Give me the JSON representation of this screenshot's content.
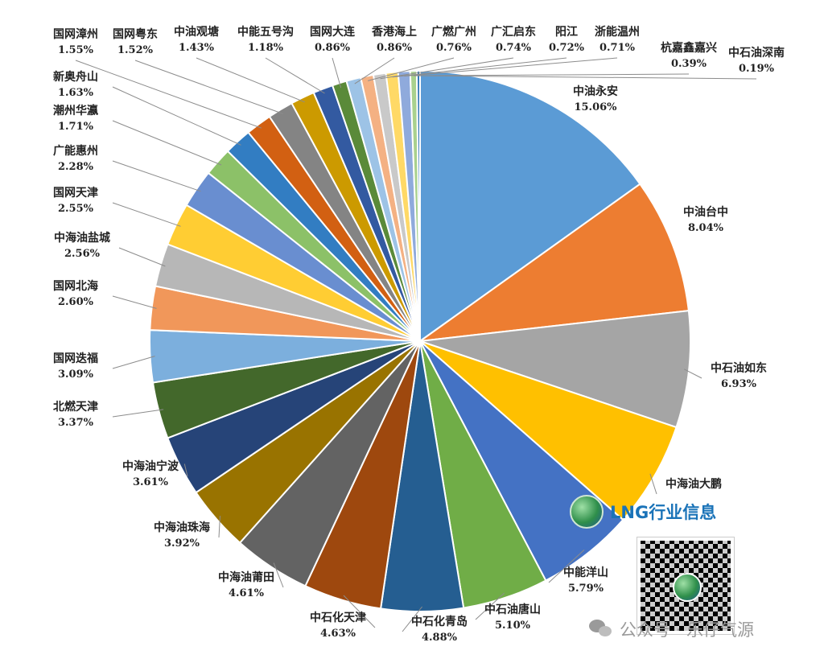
{
  "chart_data": {
    "type": "pie",
    "title": "",
    "slices": [
      {
        "label": "中油永安",
        "value": 15.06,
        "display": "15.06%",
        "color": "#5b9bd5"
      },
      {
        "label": "中油台中",
        "value": 8.04,
        "display": "8.04%",
        "color": "#ed7d31"
      },
      {
        "label": "中石油如东",
        "value": 6.93,
        "display": "6.93%",
        "color": "#a5a5a5"
      },
      {
        "label": "中海油大鹏",
        "value": 6.3,
        "display": "",
        "color": "#ffc000"
      },
      {
        "label": "中能洋山",
        "value": 5.79,
        "display": "5.79%",
        "color": "#4472c4"
      },
      {
        "label": "中石油唐山",
        "value": 5.1,
        "display": "5.10%",
        "color": "#70ad47"
      },
      {
        "label": "中石化青岛",
        "value": 4.88,
        "display": "4.88%",
        "color": "#255e91"
      },
      {
        "label": "中石化天津",
        "value": 4.63,
        "display": "4.63%",
        "color": "#9e480e"
      },
      {
        "label": "中海油莆田",
        "value": 4.61,
        "display": "4.61%",
        "color": "#636363"
      },
      {
        "label": "中海油珠海",
        "value": 3.92,
        "display": "3.92%",
        "color": "#997300"
      },
      {
        "label": "中海油宁波",
        "value": 3.61,
        "display": "3.61%",
        "color": "#264478"
      },
      {
        "label": "北燃天津",
        "value": 3.37,
        "display": "3.37%",
        "color": "#43682b"
      },
      {
        "label": "国网迭福",
        "value": 3.09,
        "display": "3.09%",
        "color": "#7cafdd"
      },
      {
        "label": "国网北海",
        "value": 2.6,
        "display": "2.60%",
        "color": "#f1975a"
      },
      {
        "label": "中海油盐城",
        "value": 2.56,
        "display": "2.56%",
        "color": "#b7b7b7"
      },
      {
        "label": "国网天津",
        "value": 2.55,
        "display": "2.55%",
        "color": "#ffcd33"
      },
      {
        "label": "广能惠州",
        "value": 2.28,
        "display": "2.28%",
        "color": "#698ed0"
      },
      {
        "label": "潮州华瀛",
        "value": 1.71,
        "display": "1.71%",
        "color": "#8cc168"
      },
      {
        "label": "新奥舟山",
        "value": 1.63,
        "display": "1.63%",
        "color": "#327dc2"
      },
      {
        "label": "国网漳州",
        "value": 1.55,
        "display": "1.55%",
        "color": "#d26012"
      },
      {
        "label": "国网粤东",
        "value": 1.52,
        "display": "1.52%",
        "color": "#848484"
      },
      {
        "label": "中油观塘",
        "value": 1.43,
        "display": "1.43%",
        "color": "#cc9a00"
      },
      {
        "label": "中能五号沟",
        "value": 1.18,
        "display": "1.18%",
        "color": "#335aa1"
      },
      {
        "label": "国网大连",
        "value": 0.86,
        "display": "0.86%",
        "color": "#5a8a39"
      },
      {
        "label": "香港海上",
        "value": 0.86,
        "display": "0.86%",
        "color": "#9dc3e6"
      },
      {
        "label": "广燃广州",
        "value": 0.76,
        "display": "0.76%",
        "color": "#f4b183"
      },
      {
        "label": "广汇启东",
        "value": 0.74,
        "display": "0.74%",
        "color": "#c9c9c9"
      },
      {
        "label": "阳江",
        "value": 0.72,
        "display": "0.72%",
        "color": "#ffd966"
      },
      {
        "label": "浙能温州",
        "value": 0.71,
        "display": "0.71%",
        "color": "#8faadc"
      },
      {
        "label": "杭嘉鑫嘉兴",
        "value": 0.39,
        "display": "0.39%",
        "color": "#a9d18e"
      },
      {
        "label": "中石油深南",
        "value": 0.19,
        "display": "0.19%",
        "color": "#2e75b6"
      }
    ]
  },
  "watermark": {
    "brand": "LNG行业信息",
    "account": "公众号 · 乐仔气源"
  }
}
